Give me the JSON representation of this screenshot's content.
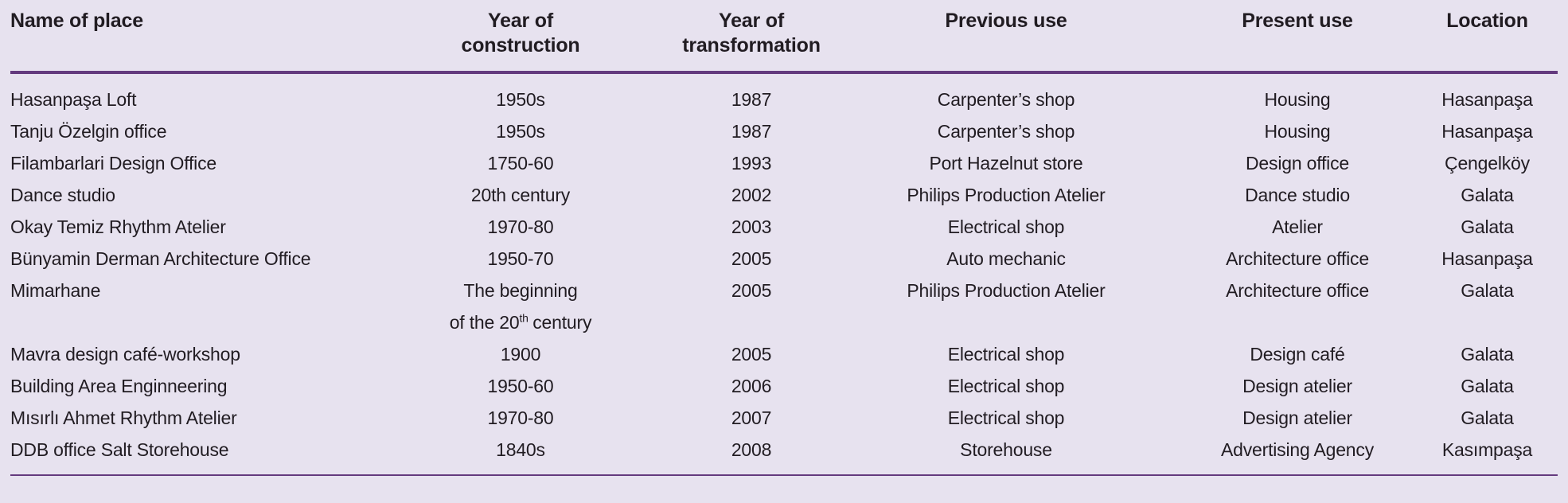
{
  "colors": {
    "background": "#e7e2ef",
    "rule": "#643a7e",
    "text": "#211c22"
  },
  "table": {
    "headers": {
      "name": {
        "line1": "Name of place",
        "line2": ""
      },
      "construction": {
        "line1": "Year of",
        "line2": "construction"
      },
      "transformation": {
        "line1": "Year of",
        "line2": "transformation"
      },
      "previous": {
        "line1": "Previous use",
        "line2": ""
      },
      "present": {
        "line1": "Present use",
        "line2": ""
      },
      "location": {
        "line1": "Location",
        "line2": ""
      }
    },
    "rows": [
      {
        "name": "Hasanpaşa Loft",
        "construction": "1950s",
        "transformation": "1987",
        "previous": "Carpenter’s shop",
        "present": "Housing",
        "location": "Hasanpaşa"
      },
      {
        "name": "Tanju Özelgin office",
        "construction": "1950s",
        "transformation": "1987",
        "previous": "Carpenter’s shop",
        "present": "Housing",
        "location": "Hasanpaşa"
      },
      {
        "name": "Filambarlari Design Office",
        "construction": "1750-60",
        "transformation": "1993",
        "previous": "Port Hazelnut store",
        "present": "Design office",
        "location": "Çengelköy"
      },
      {
        "name": "Dance studio",
        "construction": "20th century",
        "transformation": "2002",
        "previous": "Philips Production Atelier",
        "present": "Dance studio",
        "location": "Galata"
      },
      {
        "name": "Okay Temiz Rhythm Atelier",
        "construction": "1970-80",
        "transformation": "2003",
        "previous": "Electrical shop",
        "present": "Atelier",
        "location": "Galata"
      },
      {
        "name": "Bünyamin Derman Architecture Office",
        "construction": "1950-70",
        "transformation": "2005",
        "previous": "Auto mechanic",
        "present": "Architecture office",
        "location": "Hasanpaşa"
      },
      {
        "name": "Mimarhane",
        "construction_line1": "The beginning",
        "construction_line2_pre": "of the 20",
        "construction_line2_sup": "th",
        "construction_line2_post": "century",
        "transformation": "2005",
        "previous": "Philips Production Atelier",
        "present": "Architecture office",
        "location": "Galata"
      },
      {
        "name": "Mavra design café-workshop",
        "construction": "1900",
        "transformation": "2005",
        "previous": "Electrical shop",
        "present": "Design café",
        "location": "Galata"
      },
      {
        "name": "Building Area Enginneering",
        "construction": "1950-60",
        "transformation": "2006",
        "previous": "Electrical shop",
        "present": "Design atelier",
        "location": "Galata"
      },
      {
        "name": "Mısırlı Ahmet Rhythm Atelier",
        "construction": "1970-80",
        "transformation": "2007",
        "previous": "Electrical shop",
        "present": "Design atelier",
        "location": "Galata"
      },
      {
        "name": "DDB office Salt Storehouse",
        "construction": "1840s",
        "transformation": "2008",
        "previous": "Storehouse",
        "present": "Advertising Agency",
        "location": "Kasımpaşa"
      }
    ]
  }
}
